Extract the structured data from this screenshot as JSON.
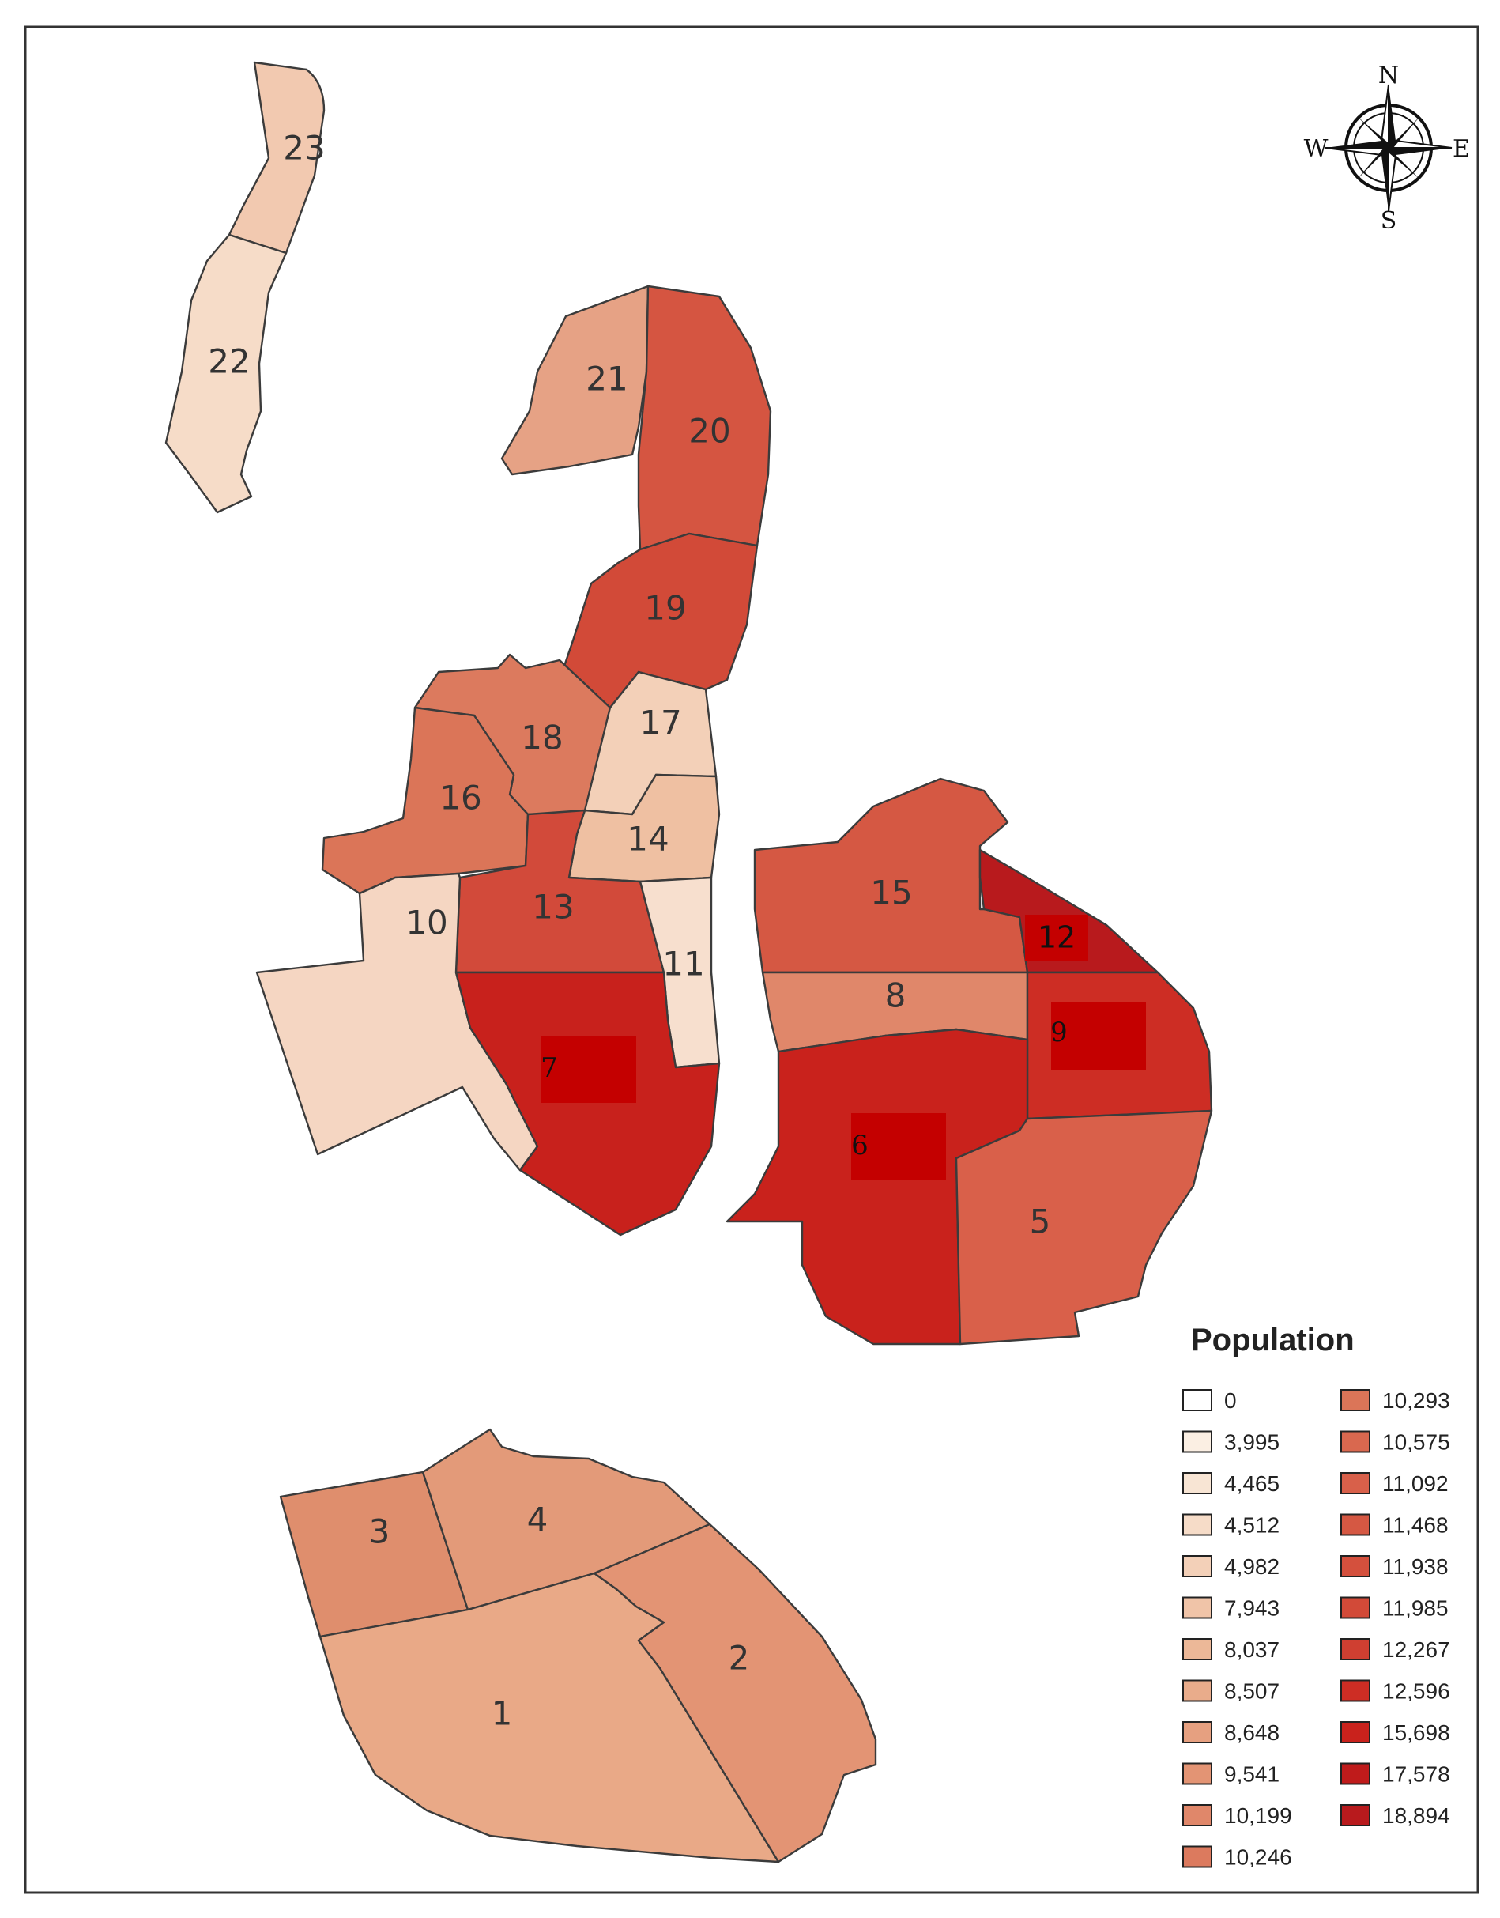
{
  "compass": {
    "north": "N",
    "east": "E",
    "south": "S",
    "west": "W"
  },
  "districts": [
    {
      "id": "1",
      "color": "#e9a987"
    },
    {
      "id": "2",
      "color": "#e39474"
    },
    {
      "id": "3",
      "color": "#df8e6d"
    },
    {
      "id": "4",
      "color": "#e39a79"
    },
    {
      "id": "5",
      "color": "#d9604a"
    },
    {
      "id": "6",
      "color": "#c9221c"
    },
    {
      "id": "7",
      "color": "#c8211c"
    },
    {
      "id": "8",
      "color": "#e0876a"
    },
    {
      "id": "9",
      "color": "#cd2d24"
    },
    {
      "id": "10",
      "color": "#f5d6c2"
    },
    {
      "id": "11",
      "color": "#f7dfce"
    },
    {
      "id": "12",
      "color": "#b81a1d"
    },
    {
      "id": "13",
      "color": "#d24a3a"
    },
    {
      "id": "14",
      "color": "#efc0a2"
    },
    {
      "id": "15",
      "color": "#d55843"
    },
    {
      "id": "16",
      "color": "#db7558"
    },
    {
      "id": "17",
      "color": "#f3d0b8"
    },
    {
      "id": "18",
      "color": "#dc7a5e"
    },
    {
      "id": "19",
      "color": "#d24a38"
    },
    {
      "id": "20",
      "color": "#d55541"
    },
    {
      "id": "21",
      "color": "#e6a285"
    },
    {
      "id": "22",
      "color": "#f6dcc8"
    },
    {
      "id": "23",
      "color": "#f2c9b0"
    }
  ],
  "highlight_color": "#c40000",
  "legend": {
    "title": "Population",
    "entries": [
      {
        "label": "0",
        "color": "#ffffff"
      },
      {
        "label": "3,995",
        "color": "#fbefe3"
      },
      {
        "label": "4,465",
        "color": "#f8e5d4"
      },
      {
        "label": "4,512",
        "color": "#f6dcc8"
      },
      {
        "label": "4,982",
        "color": "#f3d0b8"
      },
      {
        "label": "7,943",
        "color": "#f0c4a8"
      },
      {
        "label": "8,037",
        "color": "#ecb898"
      },
      {
        "label": "8,507",
        "color": "#e9ac8b"
      },
      {
        "label": "8,648",
        "color": "#e6a080"
      },
      {
        "label": "9,541",
        "color": "#e39474"
      },
      {
        "label": "10,199",
        "color": "#e0876a"
      },
      {
        "label": "10,246",
        "color": "#dc7a5e"
      },
      {
        "label": "10,293",
        "color": "#db7558"
      },
      {
        "label": "10,575",
        "color": "#d9684f"
      },
      {
        "label": "11,092",
        "color": "#d8604a"
      },
      {
        "label": "11,468",
        "color": "#d55843"
      },
      {
        "label": "11,938",
        "color": "#d4503d"
      },
      {
        "label": "11,985",
        "color": "#d24a38"
      },
      {
        "label": "12,267",
        "color": "#cf3f31"
      },
      {
        "label": "12,596",
        "color": "#cd2d24"
      },
      {
        "label": "15,698",
        "color": "#c9221c"
      },
      {
        "label": "17,578",
        "color": "#bf1b1b"
      },
      {
        "label": "18,894",
        "color": "#b81a1d"
      }
    ]
  }
}
